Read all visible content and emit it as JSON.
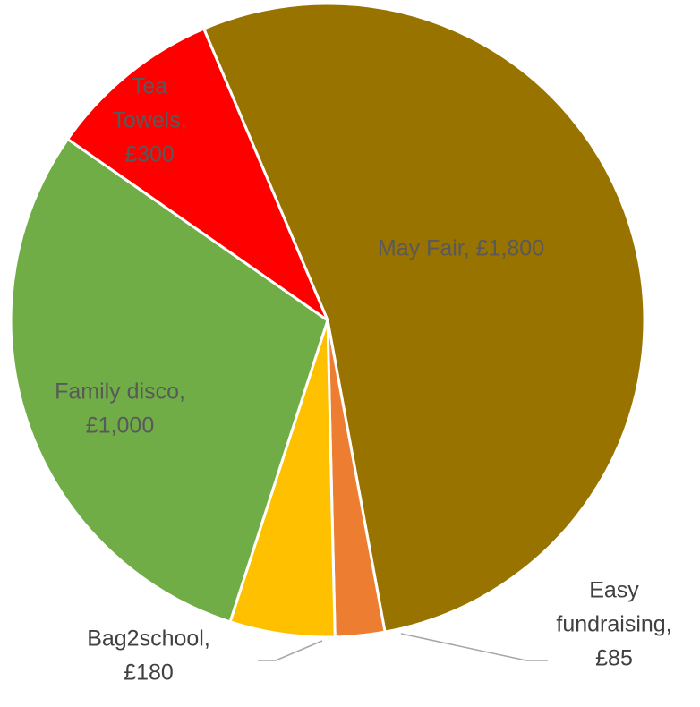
{
  "chart_data": {
    "type": "pie",
    "slices": [
      {
        "label": "May Fair",
        "value": 1800,
        "value_text": "£1,800",
        "color": "#997300"
      },
      {
        "label": "Easy fundraising",
        "value": 85,
        "value_text": "£85",
        "color": "#ED7D31"
      },
      {
        "label": "Bag2school",
        "value": 180,
        "value_text": "£180",
        "color": "#FFC000"
      },
      {
        "label": "Family disco",
        "value": 1000,
        "value_text": "£1,000",
        "color": "#70AD47"
      },
      {
        "label": "Tea Towels",
        "value": 300,
        "value_text": "£300",
        "color": "#FF0000"
      }
    ],
    "label_lines": [
      [
        "May Fair,  £1,800"
      ],
      [
        "Easy",
        "fundraising,",
        "£85"
      ],
      [
        "Bag2school,",
        "£180"
      ],
      [
        "Family disco,",
        "£1,000"
      ],
      [
        "Tea",
        "Towels,",
        "£300"
      ]
    ],
    "start_angle_deg": -23,
    "direction": "clockwise",
    "leader_lines_for": [
      "Easy fundraising",
      "Bag2school"
    ]
  }
}
